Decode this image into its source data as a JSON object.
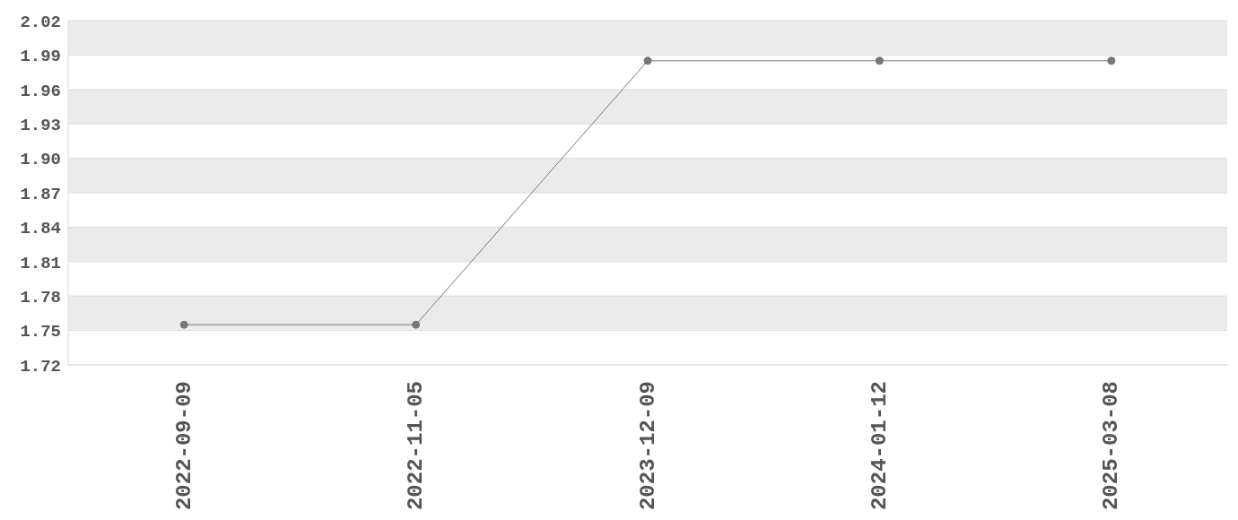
{
  "chart_data": {
    "type": "line",
    "categories": [
      "2022-09-09",
      "2022-11-05",
      "2023-12-09",
      "2024-01-12",
      "2025-03-08"
    ],
    "series": [
      {
        "color": "#777777",
        "values": [
          1.755,
          1.755,
          1.985,
          1.985,
          1.985
        ]
      }
    ],
    "ylim": [
      1.72,
      2.02
    ],
    "yticks": [
      1.72,
      1.75,
      1.78,
      1.81,
      1.84,
      1.87,
      {
        "value": 1.9,
        "label": "1.90"
      },
      1.93,
      1.96,
      1.99,
      2.02
    ],
    "grid": "y",
    "marker": "circle",
    "line_style": "solid",
    "legend": false
  }
}
